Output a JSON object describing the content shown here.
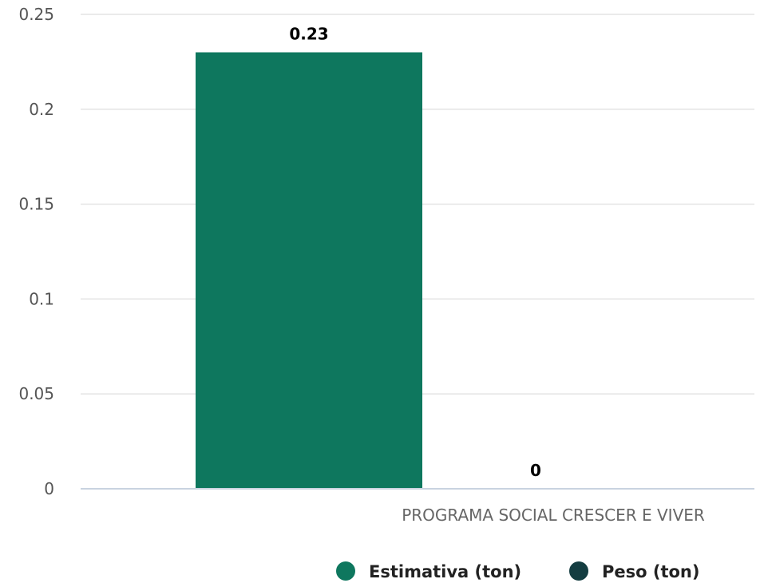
{
  "chart_data": {
    "type": "bar",
    "categories": [
      "PROGRAMA SOCIAL CRESCER E VIVER"
    ],
    "series": [
      {
        "name": "Estimativa (ton)",
        "values": [
          0.23
        ],
        "color": "#0e775e"
      },
      {
        "name": "Peso (ton)",
        "values": [
          0
        ],
        "color": "#143d41"
      }
    ],
    "data_labels": [
      "0.23",
      "0"
    ],
    "y_ticks": [
      "0",
      "0.05",
      "0.1",
      "0.15",
      "0.2",
      "0.25"
    ],
    "ylim": [
      0,
      0.25
    ],
    "grid": true,
    "legend_position": "bottom-center"
  }
}
